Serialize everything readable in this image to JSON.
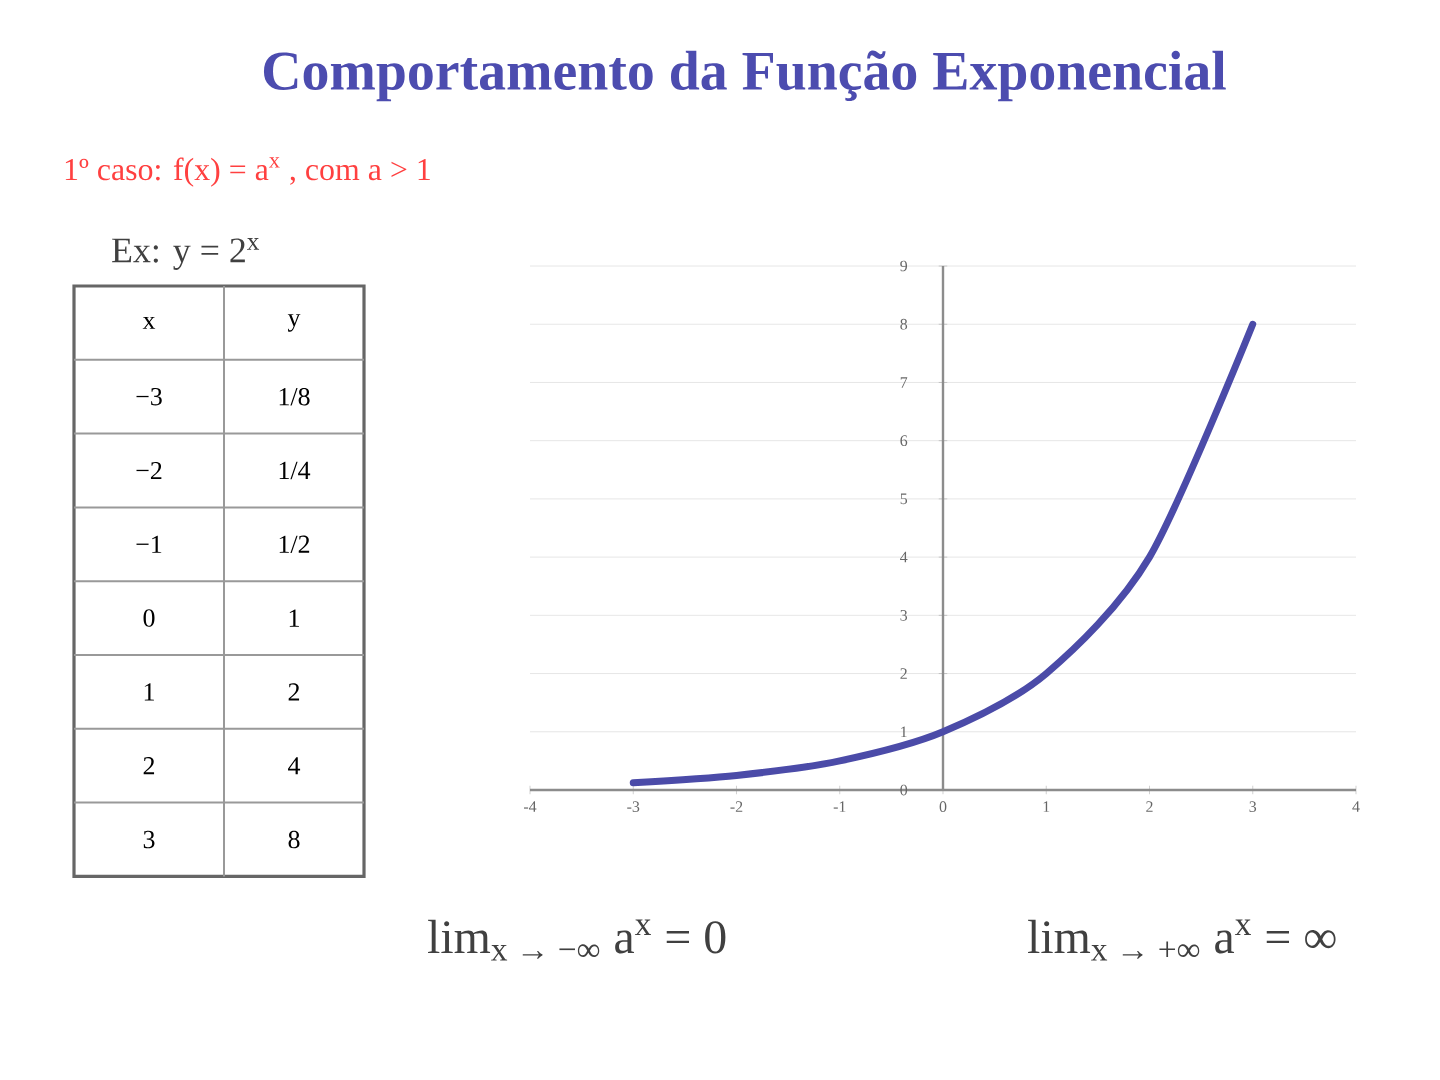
{
  "chart_data": {
    "type": "line",
    "title": "Comportamento da Função Exponencial",
    "subtitle": "1º caso: f(x) = a$^{x}$ , com a > 1",
    "x": [
      -3,
      -2,
      -1,
      0,
      1,
      2,
      3
    ],
    "values": [
      0.125,
      0.25,
      0.5,
      1,
      2,
      4,
      8
    ],
    "color": "#4b4ba8",
    "marker": "none",
    "line_style": "solid",
    "grid": "y",
    "xlim": [
      -4,
      4
    ],
    "xticks": [
      -4,
      -3,
      -2,
      -1,
      0,
      1,
      2,
      3,
      4
    ],
    "ylim": [
      0,
      9
    ],
    "yticks": [
      0,
      1,
      2,
      3,
      4,
      5,
      6,
      7,
      8,
      9
    ],
    "annotations": [
      "Ex: y = 2$^{x}$",
      "lim$_{x → −∞}$ a$^{x}$ = 0",
      "lim$_{x → +∞}$ a$^{x}$ = ∞",
      "x",
      "y",
      "−3",
      "1/8",
      "−2",
      "1/4",
      "−1",
      "1/2",
      "0",
      "1",
      "1",
      "2",
      "2",
      "4",
      "3",
      "8"
    ]
  }
}
